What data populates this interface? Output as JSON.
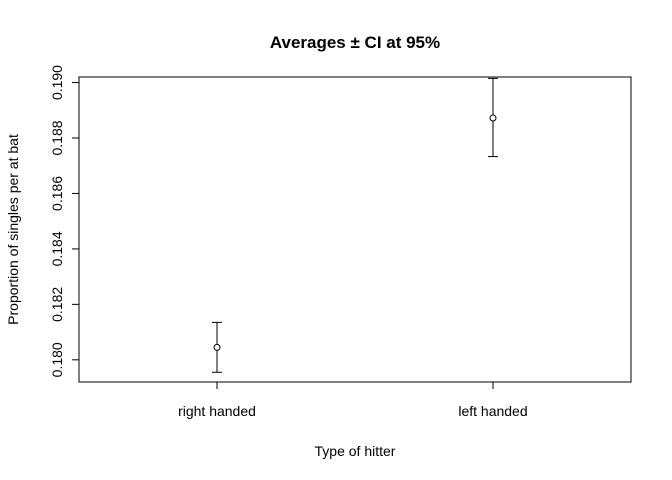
{
  "chart_data": {
    "type": "scatter",
    "title": "Averages ± CI at 95%",
    "xlabel": "Type of hitter",
    "ylabel": "Proportion of singles per at bat",
    "categories": [
      "right handed",
      "left handed"
    ],
    "series": [
      {
        "values": [
          0.18045,
          0.18872
        ],
        "lower": [
          0.17955,
          0.18733
        ],
        "upper": [
          0.18135,
          0.19015
        ]
      }
    ],
    "ylim": [
      0.1792,
      0.1902
    ],
    "xlim": [
      0.5,
      2.5
    ],
    "yticks": [
      0.18,
      0.182,
      0.184,
      0.186,
      0.188,
      0.19
    ],
    "ytick_labels": [
      "0.180",
      "0.182",
      "0.184",
      "0.186",
      "0.188",
      "0.190"
    ],
    "grid": false,
    "legend": "none"
  }
}
